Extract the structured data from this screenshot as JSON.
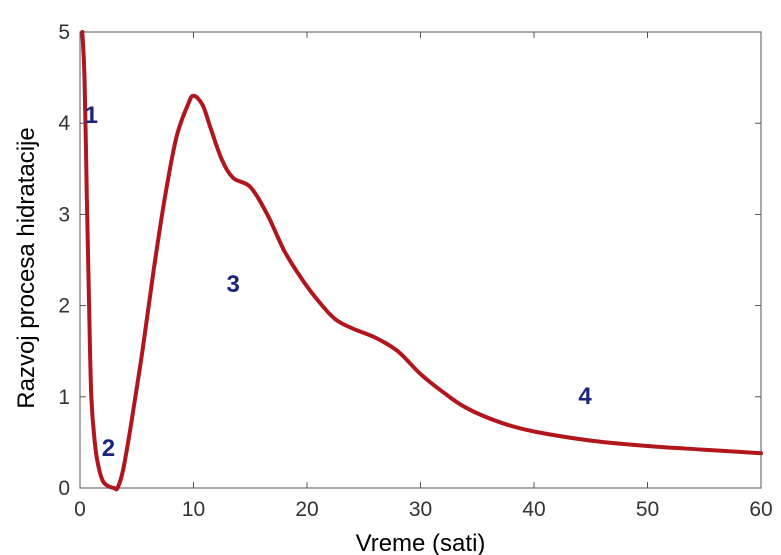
{
  "chart_data": {
    "type": "line",
    "xlabel": "Vreme (sati)",
    "ylabel": "Razvoj procesa hidratacije",
    "xlim": [
      0,
      60
    ],
    "ylim": [
      0,
      5
    ],
    "x_ticks": [
      "0",
      "10",
      "20",
      "30",
      "40",
      "50",
      "60"
    ],
    "y_ticks": [
      "0",
      "1",
      "2",
      "3",
      "4",
      "5"
    ],
    "grid": false,
    "series": [
      {
        "color": "#b0161c",
        "x": [
          0.2,
          0.4,
          0.6,
          0.8,
          1.0,
          1.3,
          1.6,
          2.0,
          2.5,
          3.0,
          3.3,
          3.8,
          4.5,
          5.5,
          6.5,
          7.5,
          8.5,
          9.5,
          10.0,
          10.8,
          11.5,
          12.5,
          13.5,
          15.0,
          16.5,
          18.0,
          19.5,
          21.0,
          22.5,
          24.0,
          26.0,
          28.0,
          30.0,
          32.0,
          34.0,
          37.0,
          40.0,
          45.0,
          50.0,
          55.0,
          60.0
        ],
        "values": [
          5.0,
          4.5,
          3.2,
          2.0,
          1.0,
          0.5,
          0.25,
          0.08,
          0.02,
          0.0,
          0.0,
          0.2,
          0.7,
          1.5,
          2.4,
          3.2,
          3.85,
          4.2,
          4.3,
          4.2,
          3.95,
          3.6,
          3.4,
          3.3,
          3.0,
          2.6,
          2.3,
          2.05,
          1.85,
          1.75,
          1.65,
          1.5,
          1.25,
          1.05,
          0.88,
          0.72,
          0.62,
          0.52,
          0.46,
          0.42,
          0.38
        ]
      }
    ],
    "annotations": [
      {
        "text": "1",
        "x": 1.0,
        "y": 4.0,
        "color": "#1a237e"
      },
      {
        "text": "2",
        "x": 2.5,
        "y": 0.35,
        "color": "#1a237e"
      },
      {
        "text": "3",
        "x": 13.5,
        "y": 2.15,
        "color": "#1a237e"
      },
      {
        "text": "4",
        "x": 44.5,
        "y": 0.92,
        "color": "#1a237e"
      }
    ]
  }
}
